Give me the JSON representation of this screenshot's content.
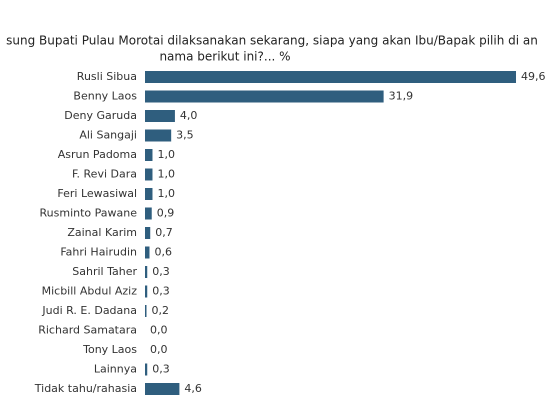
{
  "chart_data": {
    "type": "bar",
    "orientation": "horizontal",
    "title": "sung Bupati Pulau Morotai dilaksanakan sekarang, siapa yang akan Ibu/Bapak pilih di an",
    "subtitle": "nama berikut ini?... %",
    "categories": [
      "Rusli Sibua",
      "Benny Laos",
      "Deny Garuda",
      "Ali Sangaji",
      "Asrun Padoma",
      "F. Revi Dara",
      "Feri Lewasiwal",
      "Rusminto Pawane",
      "Zainal Karim",
      "Fahri Hairudin",
      "Sahril Taher",
      "Micbill Abdul Aziz",
      "Judi R. E. Dadana",
      "Richard Samatara",
      "Tony Laos",
      "Lainnya",
      "Tidak tahu/rahasia"
    ],
    "values": [
      49.6,
      31.9,
      4.0,
      3.5,
      1.0,
      1.0,
      1.0,
      0.9,
      0.7,
      0.6,
      0.3,
      0.3,
      0.2,
      0.0,
      0.0,
      0.3,
      4.6
    ],
    "value_labels": [
      "49,6",
      "31,9",
      "4,0",
      "3,5",
      "1,0",
      "1,0",
      "1,0",
      "0,9",
      "0,7",
      "0,6",
      "0,3",
      "0,3",
      "0,2",
      "0,0",
      "0,0",
      "0,3",
      "4,6"
    ],
    "color": "#2f5e7e"
  }
}
